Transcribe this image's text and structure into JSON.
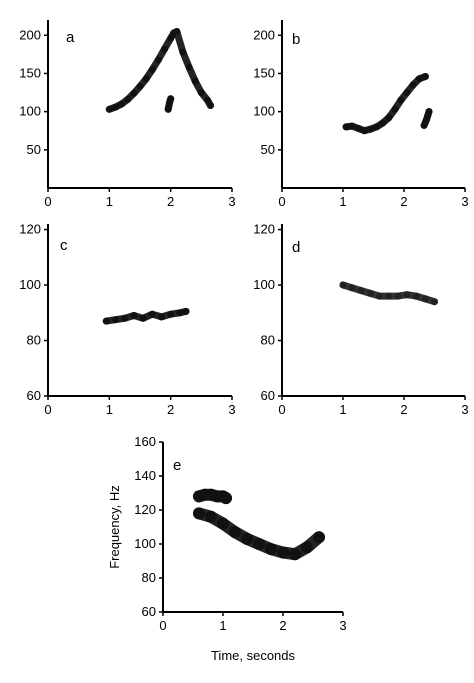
{
  "chart_data": [
    {
      "type": "scatter",
      "panel_label": "a",
      "xlim": [
        0,
        3
      ],
      "ylim": [
        0,
        220
      ],
      "xticks": [
        0,
        1,
        2,
        3
      ],
      "yticks": [
        50,
        100,
        150,
        200
      ],
      "xlabel": "",
      "ylabel": "",
      "series": [
        {
          "ink": "#111111",
          "x": [
            1.0,
            1.1,
            1.2,
            1.3,
            1.4,
            1.5,
            1.6,
            1.7,
            1.8,
            1.9,
            2.0,
            2.05,
            2.1,
            2.2,
            2.3,
            2.4,
            2.5,
            2.6,
            2.65
          ],
          "y": [
            103,
            106,
            110,
            116,
            124,
            133,
            143,
            155,
            168,
            182,
            196,
            203,
            205,
            178,
            158,
            140,
            125,
            115,
            108
          ]
        },
        {
          "ink": "#111111",
          "x": [
            1.96,
            1.97,
            1.98,
            1.99,
            2.0
          ],
          "y": [
            103,
            107,
            111,
            114,
            117
          ]
        }
      ]
    },
    {
      "type": "scatter",
      "panel_label": "b",
      "xlim": [
        0,
        3
      ],
      "ylim": [
        0,
        220
      ],
      "xticks": [
        0,
        1,
        2,
        3
      ],
      "yticks": [
        50,
        100,
        150,
        200
      ],
      "xlabel": "",
      "ylabel": "",
      "series": [
        {
          "ink": "#111111",
          "x": [
            1.05,
            1.15,
            1.25,
            1.35,
            1.45,
            1.55,
            1.65,
            1.75,
            1.85,
            1.95,
            2.05,
            2.15,
            2.25,
            2.35
          ],
          "y": [
            80,
            81,
            78,
            75,
            77,
            80,
            85,
            92,
            103,
            115,
            125,
            135,
            143,
            146
          ]
        },
        {
          "ink": "#111111",
          "x": [
            2.33,
            2.35,
            2.37,
            2.39,
            2.41
          ],
          "y": [
            82,
            86,
            90,
            95,
            100
          ]
        }
      ]
    },
    {
      "type": "scatter",
      "panel_label": "c",
      "xlim": [
        0,
        3
      ],
      "ylim": [
        60,
        122
      ],
      "xticks": [
        0,
        1,
        2,
        3
      ],
      "yticks": [
        60,
        80,
        100,
        120
      ],
      "xlabel": "",
      "ylabel": "",
      "series": [
        {
          "ink": "#111111",
          "x": [
            0.95,
            1.1,
            1.25,
            1.4,
            1.55,
            1.7,
            1.85,
            2.0,
            2.15,
            2.25
          ],
          "y": [
            87,
            87.5,
            88,
            89,
            88,
            89.5,
            88.5,
            89.5,
            90,
            90.5
          ]
        }
      ]
    },
    {
      "type": "scatter",
      "panel_label": "d",
      "xlim": [
        0,
        3
      ],
      "ylim": [
        60,
        122
      ],
      "xticks": [
        0,
        1,
        2,
        3
      ],
      "yticks": [
        60,
        80,
        100,
        120
      ],
      "xlabel": "",
      "ylabel": "",
      "series": [
        {
          "ink": "#222222",
          "x": [
            1.0,
            1.15,
            1.3,
            1.45,
            1.6,
            1.75,
            1.9,
            2.05,
            2.2,
            2.35,
            2.5
          ],
          "y": [
            100,
            99,
            98,
            97,
            96,
            96,
            96,
            96.5,
            96,
            95,
            94
          ]
        }
      ]
    },
    {
      "type": "scatter",
      "panel_label": "e",
      "xlim": [
        0,
        3
      ],
      "ylim": [
        60,
        160
      ],
      "xticks": [
        0,
        1,
        2,
        3
      ],
      "yticks": [
        60,
        80,
        100,
        120,
        140,
        160
      ],
      "xlabel": "Time, seconds",
      "ylabel": "Frequency, Hz",
      "series": [
        {
          "ink": "#111111",
          "x": [
            0.6,
            0.7,
            0.8,
            0.9,
            1.0,
            1.05
          ],
          "y": [
            128,
            129,
            129,
            128,
            128,
            127
          ]
        },
        {
          "ink": "#111111",
          "x": [
            0.6,
            0.8,
            1.0,
            1.2,
            1.4,
            1.6,
            1.8,
            2.0,
            2.2,
            2.4,
            2.6
          ],
          "y": [
            118,
            116,
            112,
            107,
            103,
            100,
            97,
            95,
            94,
            98,
            104
          ]
        }
      ]
    }
  ]
}
